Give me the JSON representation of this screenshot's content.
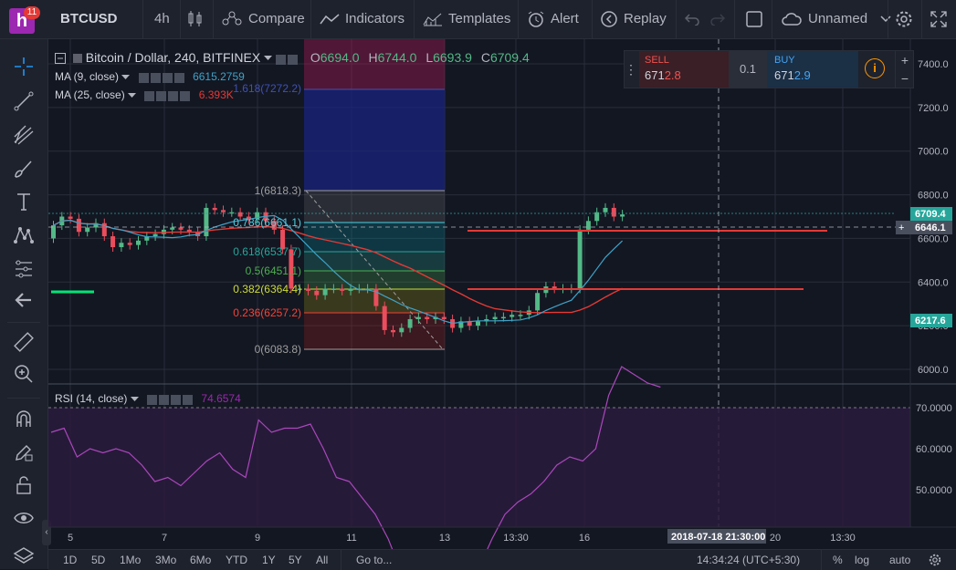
{
  "toolbar": {
    "badge": "11",
    "logo_letter": "h",
    "symbol": "BTCUSD",
    "interval": "4h",
    "compare": "Compare",
    "indicators": "Indicators",
    "templates": "Templates",
    "alert": "Alert",
    "replay": "Replay",
    "layout_name": "Unnamed"
  },
  "legend": {
    "title": "Bitcoin / Dollar, 240, BITFINEX",
    "open_label": "O",
    "open": "6694.0",
    "high_label": "H",
    "high": "6744.0",
    "low_label": "L",
    "low": "6693.9",
    "close_label": "C",
    "close": "6709.4",
    "ma9_label": "MA (9, close)",
    "ma9_value": "6615.2759",
    "ma25_label": "MA (25, close)",
    "ma25_value": "6.393K",
    "rsi_label": "RSI (14, close)",
    "rsi_value": "74.6574"
  },
  "trade": {
    "sell_label": "SELL",
    "sell_main": "671",
    "sell_bold": "2.8",
    "qty": "0.1",
    "buy_label": "BUY",
    "buy_main": "671",
    "buy_bold": "2.9"
  },
  "price_axis": [
    "7400.0",
    "7200.0",
    "7000.0",
    "6800.0",
    "6600.0",
    "6400.0",
    "6200.0",
    "6000.0"
  ],
  "price_tags": {
    "last": "6709.4",
    "crosshair": "6646.1",
    "level": "6217.6"
  },
  "rsi_axis": [
    "70.0000",
    "60.0000",
    "50.0000"
  ],
  "fib": {
    "f1": "1(6818.3)",
    "f786": "0.786(6661.1)",
    "f618": "0.618(6537.7)",
    "f5": "0.5(6451.1)",
    "f382": "0.382(6364.4)",
    "f236": "0.236(6257.2)",
    "f0": "0(6083.8)",
    "f1618": "1.618(7272.2)"
  },
  "time_axis": [
    "5",
    "7",
    "9",
    "11",
    "13",
    "13:30",
    "16",
    "20",
    "13:30"
  ],
  "crosshair_time": "2018-07-18 21:30:00",
  "bottom": {
    "ranges": [
      "1D",
      "5D",
      "1Mo",
      "3Mo",
      "6Mo",
      "YTD",
      "1Y",
      "5Y",
      "All"
    ],
    "goto": "Go to...",
    "clock": "14:34:24 (UTC+5:30)",
    "percent": "%",
    "log": "log",
    "auto": "auto"
  },
  "colors": {
    "up": "#53b987",
    "down": "#eb4d5c",
    "ma9": "#3ea3c8",
    "ma25": "#e53935",
    "rsi": "#9c27b0",
    "accent": "#26a69a"
  }
}
